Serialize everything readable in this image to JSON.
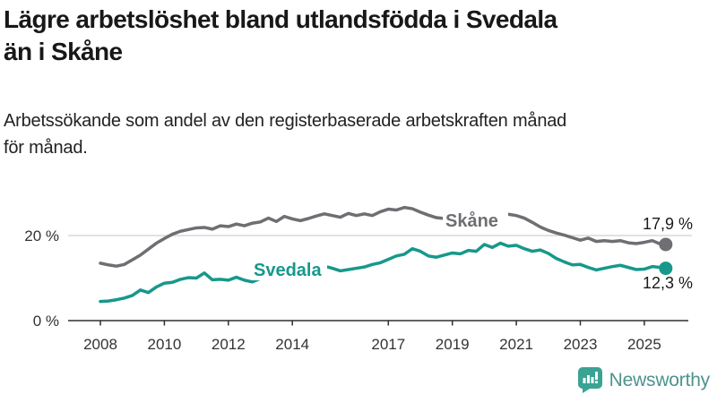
{
  "chart_data": {
    "type": "line",
    "title": "Lägre arbetslöshet bland utlandsfödda i Svedala än i Skåne",
    "title_lines": [
      "Lägre arbetslöshet bland utlandsfödda i Svedala",
      "än i Skåne"
    ],
    "subtitle": "Arbetssökande som andel av den registerbaserade arbetskraften månad för månad.",
    "subtitle_lines": [
      "Arbetssökande som andel av den registerbaserade arbetskraften månad",
      "för månad."
    ],
    "unit": "%",
    "xlim": [
      2008,
      2025.7
    ],
    "ylim": [
      0,
      28
    ],
    "grid": "single horizontal gridline at 20 %",
    "legend_position": "inline labels on lines",
    "y_ticks": [
      {
        "value": 20,
        "label": "20 %",
        "gridline": true
      },
      {
        "value": 0,
        "label": "0 %",
        "gridline": false
      }
    ],
    "x_ticks": [
      {
        "value": 2008,
        "label": "2008"
      },
      {
        "value": 2010,
        "label": "2010"
      },
      {
        "value": 2012,
        "label": "2012"
      },
      {
        "value": 2014,
        "label": "2014"
      },
      {
        "value": 2017,
        "label": "2017"
      },
      {
        "value": 2019,
        "label": "2019"
      },
      {
        "value": 2021,
        "label": "2021"
      },
      {
        "value": 2023,
        "label": "2023"
      },
      {
        "value": 2025,
        "label": "2025"
      }
    ],
    "x": [
      2008,
      2008.25,
      2008.5,
      2008.75,
      2009,
      2009.25,
      2009.5,
      2009.75,
      2010,
      2010.25,
      2010.5,
      2010.75,
      2011,
      2011.25,
      2011.5,
      2011.75,
      2012,
      2012.25,
      2012.5,
      2012.75,
      2013,
      2013.25,
      2013.5,
      2013.75,
      2014,
      2014.25,
      2014.5,
      2014.75,
      2015,
      2015.25,
      2015.5,
      2015.75,
      2016,
      2016.25,
      2016.5,
      2016.75,
      2017,
      2017.25,
      2017.5,
      2017.75,
      2018,
      2018.25,
      2018.5,
      2018.75,
      2019,
      2019.25,
      2019.5,
      2019.75,
      2020,
      2020.25,
      2020.5,
      2020.75,
      2021,
      2021.25,
      2021.5,
      2021.75,
      2022,
      2022.25,
      2022.5,
      2022.75,
      2023,
      2023.25,
      2023.5,
      2023.75,
      2024,
      2024.25,
      2024.5,
      2024.75,
      2025,
      2025.25,
      2025.5,
      2025.67
    ],
    "series": [
      {
        "name": "Skåne",
        "color": "#6e6e73",
        "end_label": "17,9 %",
        "end_value": 17.9,
        "values": [
          13.5,
          13.1,
          12.8,
          13.2,
          14.3,
          15.4,
          16.8,
          18.2,
          19.3,
          20.3,
          21.0,
          21.4,
          21.8,
          21.9,
          21.5,
          22.3,
          22.1,
          22.7,
          22.3,
          22.9,
          23.2,
          24.1,
          23.3,
          24.5,
          23.9,
          23.5,
          24.0,
          24.6,
          25.1,
          24.7,
          24.3,
          25.2,
          24.7,
          25.1,
          24.7,
          25.6,
          26.2,
          26.0,
          26.6,
          26.3,
          25.5,
          24.8,
          24.2,
          24.0,
          23.7,
          23.4,
          23.3,
          23.6,
          23.9,
          24.5,
          24.8,
          25.0,
          24.7,
          24.1,
          23.1,
          22.0,
          21.2,
          20.6,
          20.1,
          19.5,
          18.9,
          19.4,
          18.6,
          18.8,
          18.6,
          18.8,
          18.3,
          18.1,
          18.4,
          18.8,
          18.0,
          17.9
        ]
      },
      {
        "name": "Svedala",
        "color": "#17988b",
        "end_label": "12,3 %",
        "end_value": 12.3,
        "values": [
          4.5,
          4.6,
          4.9,
          5.3,
          5.9,
          7.2,
          6.6,
          7.9,
          8.8,
          9.0,
          9.7,
          10.1,
          10.0,
          11.2,
          9.6,
          9.7,
          9.5,
          10.2,
          9.5,
          9.1,
          9.9,
          10.3,
          10.9,
          11.4,
          11.8,
          12.0,
          12.2,
          12.4,
          12.8,
          12.3,
          11.7,
          12.0,
          12.3,
          12.6,
          13.2,
          13.6,
          14.4,
          15.2,
          15.6,
          16.9,
          16.3,
          15.2,
          14.9,
          15.4,
          15.9,
          15.7,
          16.5,
          16.3,
          17.9,
          17.2,
          18.2,
          17.5,
          17.7,
          16.9,
          16.3,
          16.6,
          15.8,
          14.6,
          13.8,
          13.1,
          13.2,
          12.5,
          11.9,
          12.3,
          12.7,
          13.0,
          12.5,
          12.0,
          12.1,
          12.7,
          12.5,
          12.3
        ]
      }
    ]
  },
  "footer": {
    "brand": "Newsworthy"
  }
}
